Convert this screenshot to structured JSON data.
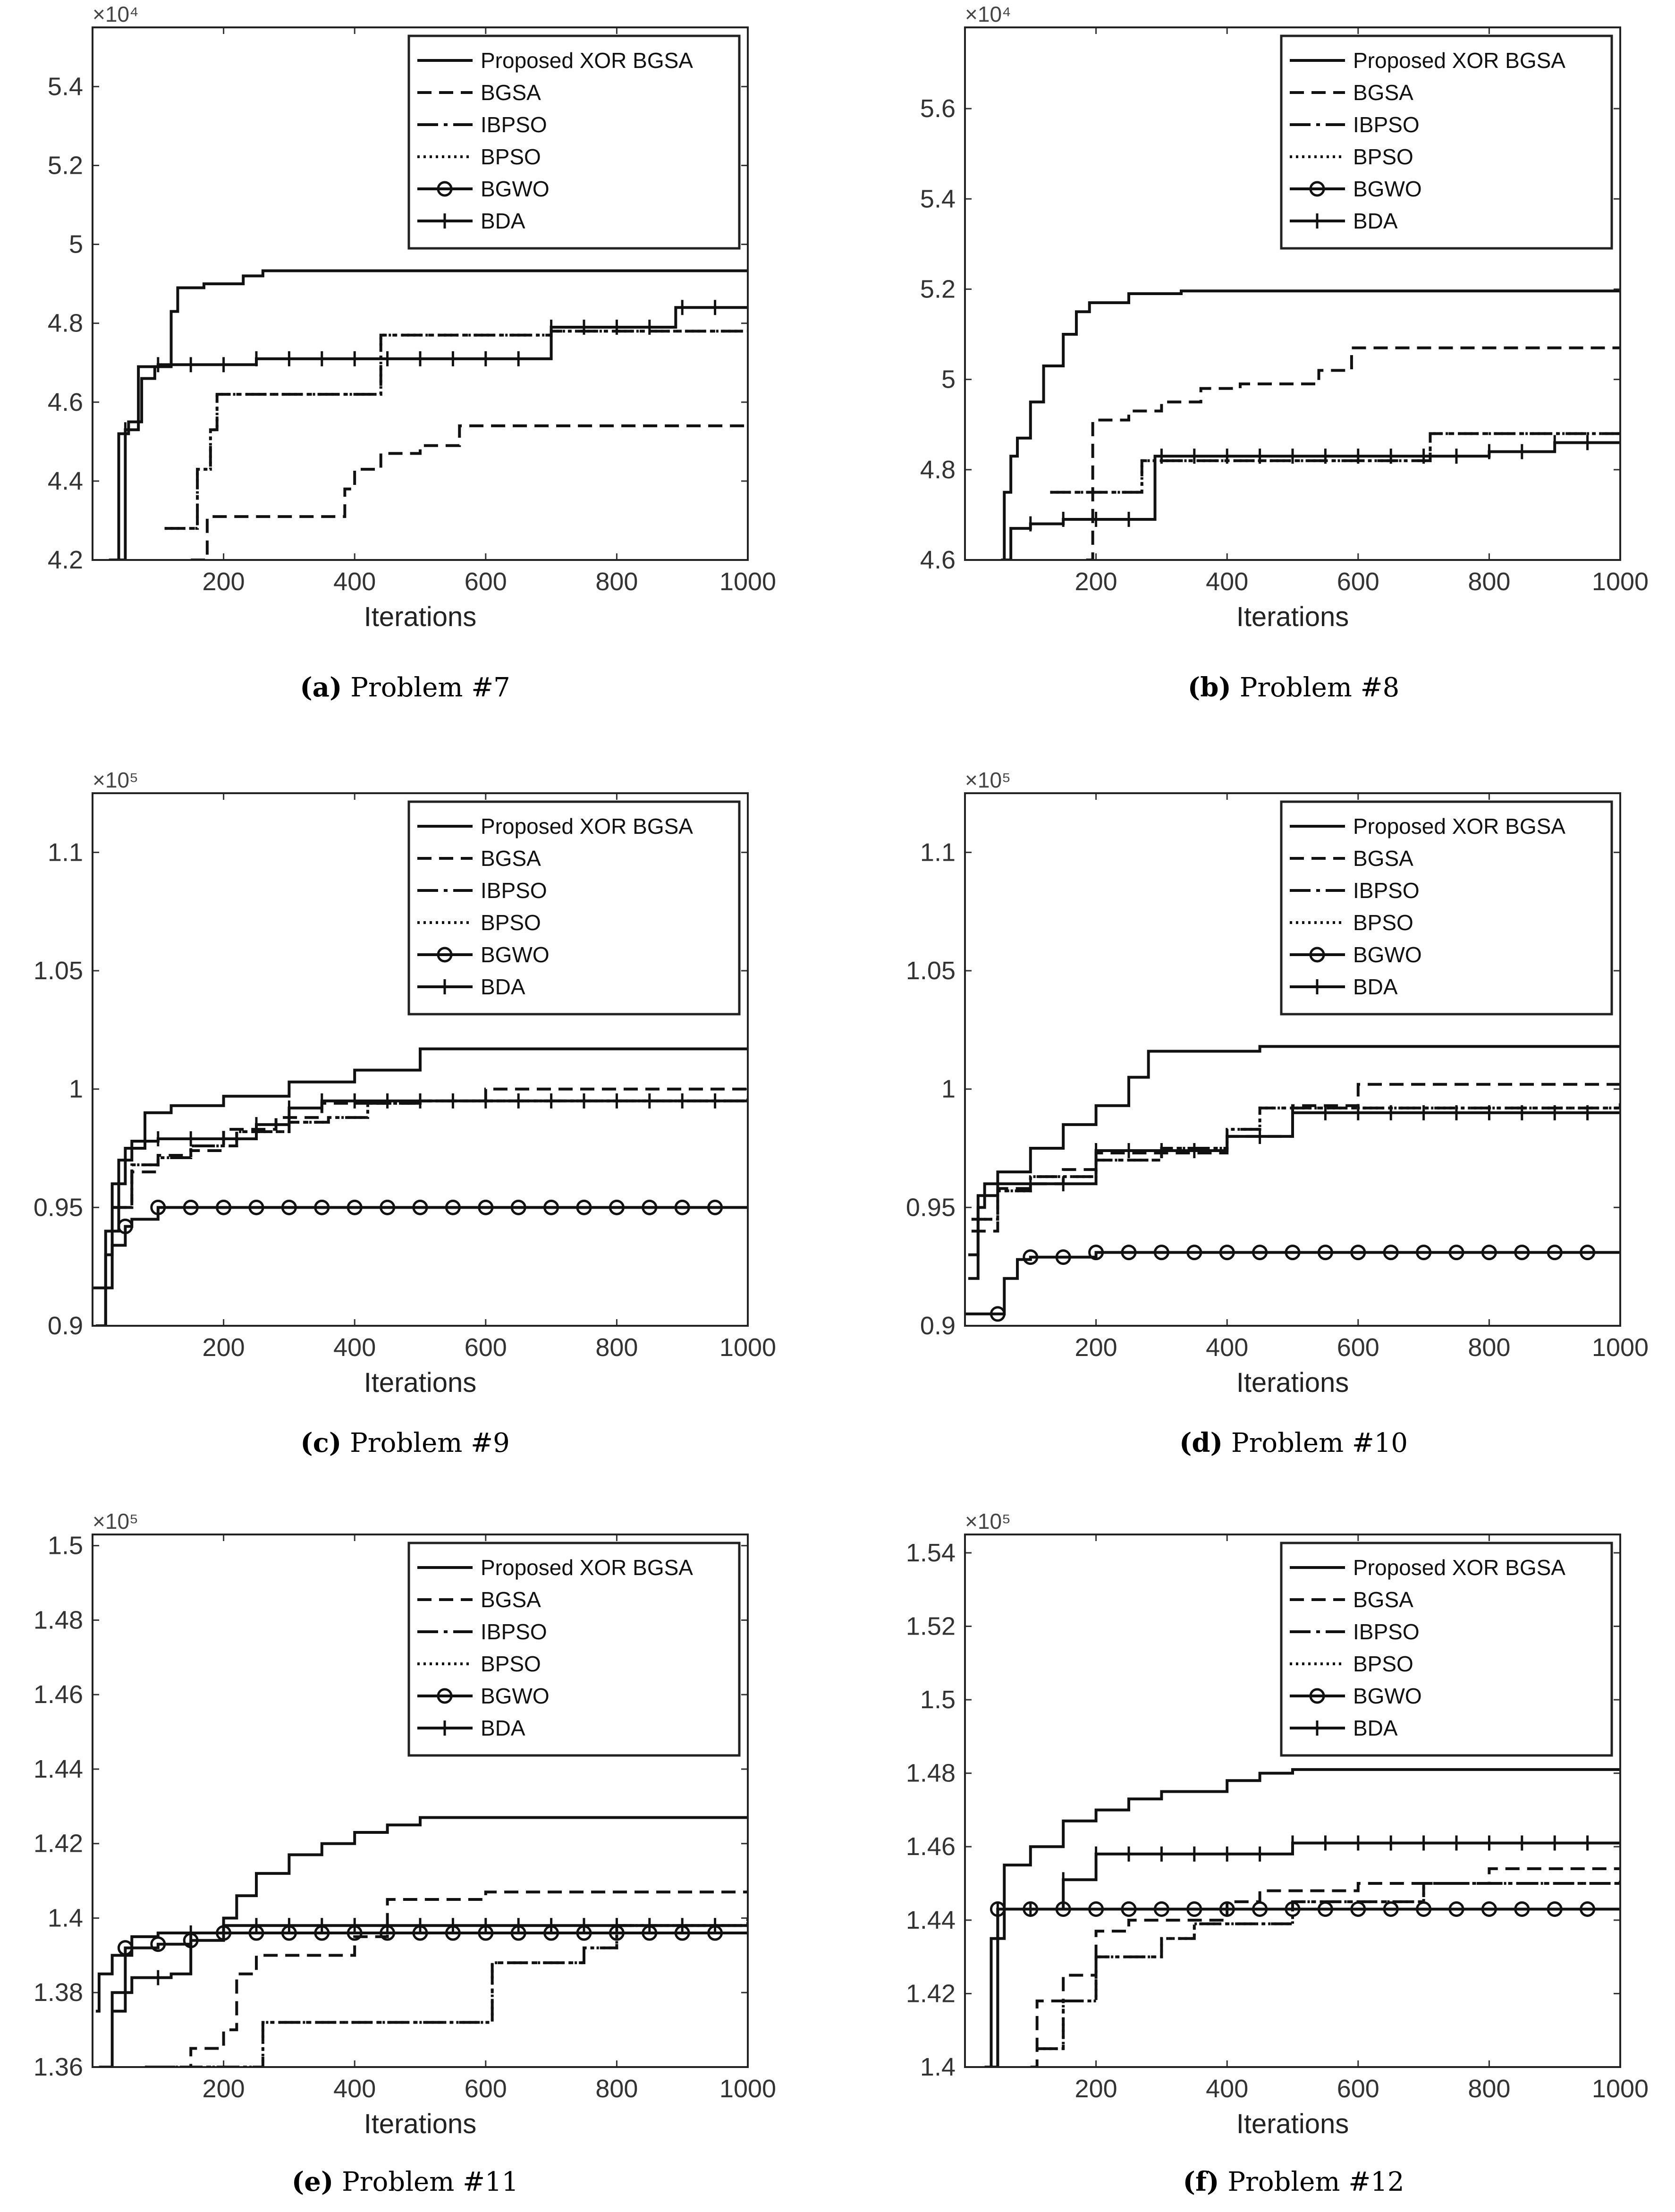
{
  "legend_labels": [
    "Proposed XOR BGSA",
    "BGSA",
    "IBPSO",
    "BPSO",
    "BGWO",
    "BDA"
  ],
  "chart_data": [
    {
      "type": "line",
      "caption_letter": "(a)",
      "caption_text": "Problem #7",
      "xlabel": "Iterations",
      "xlim": [
        0,
        1000
      ],
      "xticks": [
        "200",
        "400",
        "600",
        "800",
        "1000"
      ],
      "ylim": [
        42000,
        55500
      ],
      "yticks": [
        "4.2",
        "4.4",
        "4.6",
        "4.8",
        "5",
        "5.2",
        "5.4"
      ],
      "exponent": "×10⁴",
      "legend_position": "top-right",
      "series": [
        {
          "name": "Proposed XOR BGSA",
          "x": [
            25,
            40,
            55,
            75,
            95,
            120,
            130,
            170,
            230,
            260,
            1000
          ],
          "y": [
            42000,
            45200,
            45500,
            46600,
            46900,
            48300,
            48900,
            49000,
            49200,
            49330,
            49330
          ]
        },
        {
          "name": "BGSA",
          "x": [
            150,
            175,
            370,
            385,
            400,
            440,
            500,
            560,
            1000
          ],
          "y": [
            42000,
            43100,
            43100,
            43800,
            44300,
            44700,
            44900,
            45400,
            45400
          ]
        },
        {
          "name": "IBPSO",
          "x": [
            110,
            150,
            160,
            180,
            190,
            430,
            440,
            680,
            700,
            1000
          ],
          "y": [
            42800,
            42800,
            44300,
            45300,
            46200,
            46200,
            47700,
            47700,
            47800,
            47800
          ]
        },
        {
          "name": "BPSO",
          "x": [
            110,
            150,
            160,
            180,
            190,
            430,
            440,
            680,
            700,
            1000
          ],
          "y": [
            42800,
            42800,
            44300,
            45300,
            46200,
            46200,
            47700,
            47700,
            47800,
            47800
          ]
        },
        {
          "name": "BDA",
          "x": [
            30,
            50,
            70,
            100,
            250,
            680,
            700,
            880,
            890,
            1000
          ],
          "y": [
            42000,
            45300,
            46900,
            46950,
            47100,
            47100,
            47900,
            47900,
            48400,
            48400
          ]
        }
      ]
    },
    {
      "type": "line",
      "caption_letter": "(b)",
      "caption_text": "Problem #8",
      "xlabel": "Iterations",
      "xlim": [
        0,
        1000
      ],
      "xticks": [
        "200",
        "400",
        "600",
        "800",
        "1000"
      ],
      "ylim": [
        46000,
        57800
      ],
      "yticks": [
        "4.6",
        "4.8",
        "5",
        "5.2",
        "5.4",
        "5.6"
      ],
      "exponent": "×10⁴",
      "legend_position": "top-right",
      "series": [
        {
          "name": "Proposed XOR BGSA",
          "x": [
            55,
            60,
            70,
            80,
            100,
            120,
            150,
            170,
            190,
            250,
            330,
            1000
          ],
          "y": [
            46000,
            47500,
            48300,
            48700,
            49500,
            50300,
            51000,
            51500,
            51700,
            51900,
            51960,
            51960
          ]
        },
        {
          "name": "BGSA",
          "x": [
            185,
            195,
            250,
            300,
            360,
            420,
            540,
            590,
            1000
          ],
          "y": [
            46000,
            49100,
            49300,
            49500,
            49800,
            49900,
            50200,
            50700,
            50700
          ]
        },
        {
          "name": "IBPSO",
          "x": [
            130,
            260,
            270,
            700,
            710,
            1000
          ],
          "y": [
            47500,
            47500,
            48200,
            48200,
            48800,
            48800
          ]
        },
        {
          "name": "BPSO",
          "x": [
            130,
            260,
            270,
            700,
            710,
            1000
          ],
          "y": [
            47500,
            47500,
            48200,
            48200,
            48800,
            48800
          ]
        },
        {
          "name": "BDA",
          "x": [
            60,
            70,
            100,
            150,
            280,
            290,
            600,
            800,
            900,
            1000
          ],
          "y": [
            46000,
            46700,
            46800,
            46900,
            46900,
            48300,
            48300,
            48400,
            48600,
            48600
          ]
        }
      ]
    },
    {
      "type": "line",
      "caption_letter": "(c)",
      "caption_text": "Problem #9",
      "xlabel": "Iterations",
      "xlim": [
        0,
        1000
      ],
      "xticks": [
        "200",
        "400",
        "600",
        "800",
        "1000"
      ],
      "ylim": [
        90000,
        112500
      ],
      "yticks": [
        "0.9",
        "0.95",
        "1",
        "1.05",
        "1.1"
      ],
      "exponent": "×10⁵",
      "legend_position": "top-right",
      "series": [
        {
          "name": "Proposed XOR BGSA",
          "x": [
            5,
            20,
            30,
            50,
            80,
            120,
            200,
            300,
            400,
            500,
            1000
          ],
          "y": [
            90000,
            93000,
            96000,
            97500,
            99000,
            99300,
            99700,
            100300,
            100800,
            101700,
            101700
          ]
        },
        {
          "name": "BGSA",
          "x": [
            30,
            60,
            100,
            150,
            200,
            280,
            350,
            500,
            600,
            1000
          ],
          "y": [
            95000,
            96500,
            97200,
            97400,
            98300,
            98800,
            99400,
            99500,
            100000,
            100000
          ]
        },
        {
          "name": "IBPSO",
          "x": [
            30,
            60,
            100,
            150,
            220,
            300,
            360,
            420,
            500,
            1000
          ],
          "y": [
            95000,
            96800,
            97100,
            97600,
            98200,
            98600,
            98800,
            99400,
            99500,
            99600
          ]
        },
        {
          "name": "BPSO",
          "x": [
            30,
            60,
            100,
            150,
            220,
            300,
            360,
            420,
            500,
            1000
          ],
          "y": [
            95000,
            96800,
            97100,
            97600,
            98200,
            98600,
            98800,
            99400,
            99500,
            99600
          ]
        },
        {
          "name": "BGWO",
          "x": [
            0,
            30,
            50,
            60,
            100,
            1000
          ],
          "y": [
            91600,
            93400,
            94200,
            94500,
            95000,
            95000
          ]
        },
        {
          "name": "BDA",
          "x": [
            5,
            20,
            40,
            60,
            100,
            250,
            300,
            350,
            1000
          ],
          "y": [
            90000,
            94000,
            97000,
            97800,
            97900,
            98500,
            99200,
            99500,
            99500
          ]
        }
      ]
    },
    {
      "type": "line",
      "caption_letter": "(d)",
      "caption_text": "Problem #10",
      "xlabel": "Iterations",
      "xlim": [
        0,
        1000
      ],
      "xticks": [
        "200",
        "400",
        "600",
        "800",
        "1000"
      ],
      "ylim": [
        90000,
        112500
      ],
      "yticks": [
        "0.9",
        "0.95",
        "1",
        "1.05",
        "1.1"
      ],
      "exponent": "×10⁵",
      "legend_position": "top-right",
      "series": [
        {
          "name": "Proposed XOR BGSA",
          "x": [
            5,
            20,
            50,
            100,
            150,
            200,
            250,
            280,
            450,
            1000
          ],
          "y": [
            92000,
            95500,
            96500,
            97500,
            98500,
            99300,
            100500,
            101600,
            101800,
            101800
          ]
        },
        {
          "name": "BGSA",
          "x": [
            10,
            50,
            100,
            150,
            200,
            400,
            500,
            600,
            1000
          ],
          "y": [
            94000,
            95800,
            96000,
            96600,
            97300,
            98000,
            99300,
            100200,
            100200
          ]
        },
        {
          "name": "IBPSO",
          "x": [
            10,
            50,
            100,
            200,
            300,
            400,
            450,
            1000
          ],
          "y": [
            94500,
            95700,
            96300,
            97000,
            97500,
            98300,
            99200,
            99400
          ]
        },
        {
          "name": "BPSO",
          "x": [
            10,
            50,
            100,
            200,
            300,
            400,
            450,
            1000
          ],
          "y": [
            94500,
            95700,
            96300,
            97000,
            97500,
            98300,
            99200,
            99400
          ]
        },
        {
          "name": "BGWO",
          "x": [
            0,
            50,
            60,
            80,
            100,
            200,
            1000
          ],
          "y": [
            90500,
            90500,
            92000,
            92800,
            92900,
            93100,
            93100
          ]
        },
        {
          "name": "BDA",
          "x": [
            5,
            20,
            30,
            100,
            200,
            300,
            400,
            500,
            1000
          ],
          "y": [
            93000,
            95000,
            96000,
            96000,
            97400,
            97400,
            98000,
            99000,
            99000
          ]
        }
      ]
    },
    {
      "type": "line",
      "caption_letter": "(e)",
      "caption_text": "Problem #11",
      "xlabel": "Iterations",
      "xlim": [
        0,
        1000
      ],
      "xticks": [
        "200",
        "400",
        "600",
        "800",
        "1000"
      ],
      "ylim": [
        136000,
        150300
      ],
      "yticks": [
        "1.36",
        "1.38",
        "1.4",
        "1.42",
        "1.44",
        "1.46",
        "1.48",
        "1.5"
      ],
      "exponent": "×10⁵",
      "legend_position": "top-right",
      "series": [
        {
          "name": "Proposed XOR BGSA",
          "x": [
            5,
            10,
            30,
            60,
            100,
            200,
            220,
            250,
            300,
            350,
            400,
            450,
            500,
            1000
          ],
          "y": [
            137500,
            138500,
            139000,
            139500,
            139600,
            140000,
            140600,
            141200,
            141700,
            142000,
            142300,
            142500,
            142700,
            142700
          ]
        },
        {
          "name": "BGSA",
          "x": [
            100,
            150,
            200,
            220,
            250,
            400,
            450,
            600,
            1000
          ],
          "y": [
            136000,
            136500,
            137000,
            138500,
            139000,
            139500,
            140500,
            140700,
            140700
          ]
        },
        {
          "name": "IBPSO",
          "x": [
            80,
            250,
            260,
            600,
            610,
            750,
            800,
            1000
          ],
          "y": [
            136000,
            136000,
            137200,
            137200,
            138800,
            139200,
            139800,
            140000
          ]
        },
        {
          "name": "BPSO",
          "x": [
            80,
            250,
            260,
            600,
            610,
            750,
            800,
            1000
          ],
          "y": [
            136000,
            136000,
            137200,
            137200,
            138800,
            139200,
            139800,
            140000
          ]
        },
        {
          "name": "BGWO",
          "x": [
            30,
            50,
            100,
            150,
            200,
            1000
          ],
          "y": [
            137500,
            139200,
            139300,
            139400,
            139600,
            139600
          ]
        },
        {
          "name": "BDA",
          "x": [
            10,
            30,
            60,
            120,
            150,
            200,
            1000
          ],
          "y": [
            136000,
            138000,
            138400,
            138500,
            139600,
            139800,
            139800
          ]
        }
      ]
    },
    {
      "type": "line",
      "caption_letter": "(f)",
      "caption_text": "Problem #12",
      "xlabel": "Iterations",
      "xlim": [
        0,
        1000
      ],
      "xticks": [
        "200",
        "400",
        "600",
        "800",
        "1000"
      ],
      "ylim": [
        140000,
        154500
      ],
      "yticks": [
        "1.4",
        "1.42",
        "1.44",
        "1.46",
        "1.48",
        "1.5",
        "1.52",
        "1.54"
      ],
      "exponent": "×10⁵",
      "legend_position": "top-right",
      "series": [
        {
          "name": "Proposed XOR BGSA",
          "x": [
            30,
            40,
            60,
            100,
            150,
            200,
            250,
            300,
            400,
            450,
            500,
            1000
          ],
          "y": [
            140000,
            143500,
            145500,
            146000,
            146700,
            147000,
            147300,
            147500,
            147800,
            148000,
            148100,
            148100
          ]
        },
        {
          "name": "BGSA",
          "x": [
            100,
            110,
            150,
            200,
            250,
            400,
            450,
            600,
            800,
            1000
          ],
          "y": [
            140000,
            141800,
            142500,
            143700,
            144000,
            144500,
            144800,
            145000,
            145400,
            145400
          ]
        },
        {
          "name": "IBPSO",
          "x": [
            110,
            150,
            200,
            300,
            350,
            500,
            700,
            1000
          ],
          "y": [
            140500,
            141800,
            143000,
            143500,
            143900,
            144500,
            145000,
            145100
          ]
        },
        {
          "name": "BPSO",
          "x": [
            110,
            150,
            200,
            300,
            350,
            500,
            700,
            1000
          ],
          "y": [
            140500,
            141800,
            143000,
            143500,
            143900,
            144500,
            145000,
            145100
          ]
        },
        {
          "name": "BGWO",
          "x": [
            40,
            50,
            1000
          ],
          "y": [
            140000,
            144300,
            144300
          ]
        },
        {
          "name": "BDA",
          "x": [
            40,
            50,
            100,
            150,
            200,
            500,
            1000
          ],
          "y": [
            140000,
            144300,
            144300,
            145100,
            145800,
            146100,
            146100
          ]
        }
      ]
    }
  ]
}
